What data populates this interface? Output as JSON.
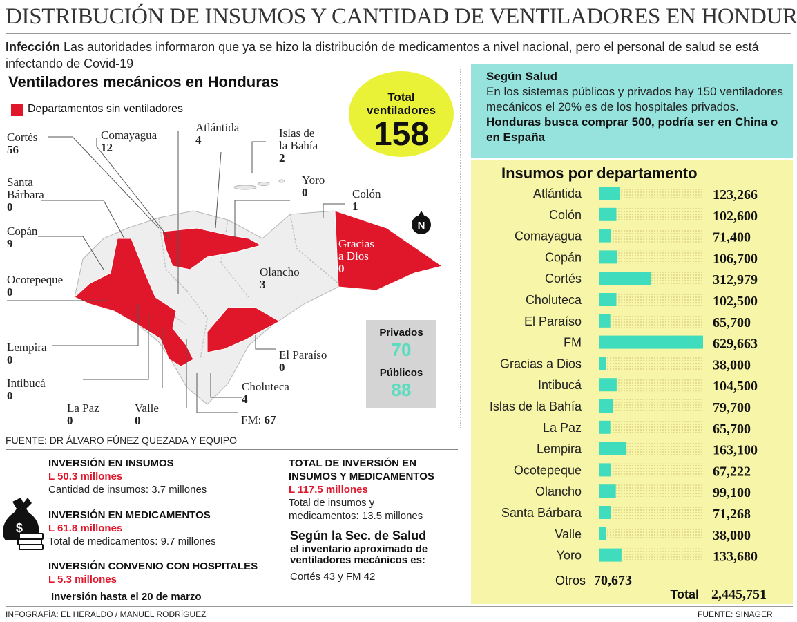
{
  "headline": "DISTRIBUCIÓN DE INSUMOS Y CANTIDAD DE VENTILADORES EN HONDURAS",
  "intro": {
    "lead": "Infección",
    "text": " Las autoridades informaron que ya se hizo la distribución de medicamentos a nivel nacional, pero el personal de salud se está infectando de Covid-19"
  },
  "ventiladores": {
    "title": "Ventiladores mecánicos en Honduras",
    "legend": "Departamentos sin ventiladores",
    "total_label_1": "Total",
    "total_label_2": "ventiladores",
    "total_value": "158",
    "departments": [
      {
        "name": "Cortés",
        "value": "56"
      },
      {
        "name": "Comayagua",
        "value": "12"
      },
      {
        "name": "Atlántida",
        "value": "4"
      },
      {
        "name": "Islas de",
        "name2": "la Bahía",
        "value": "2"
      },
      {
        "name": "Yoro",
        "value": "0"
      },
      {
        "name": "Colón",
        "value": "1"
      },
      {
        "name": "Santa",
        "name2": "Bárbara",
        "value": "0"
      },
      {
        "name": "Copán",
        "value": "9"
      },
      {
        "name": "Gracias",
        "name2": "a Dios",
        "value": "0"
      },
      {
        "name": "Olancho",
        "value": "3"
      },
      {
        "name": "Ocotepeque",
        "value": "0"
      },
      {
        "name": "Lempira",
        "value": "0"
      },
      {
        "name": "El Paraíso",
        "value": "0"
      },
      {
        "name": "Intibucá",
        "value": "0"
      },
      {
        "name": "Choluteca",
        "value": "4"
      },
      {
        "name": "La Paz",
        "value": "0"
      },
      {
        "name": "Valle",
        "value": "0"
      },
      {
        "name": "FM: ",
        "value": "67"
      }
    ],
    "privados_label": "Privados",
    "privados_value": "70",
    "publicos_label": "Públicos",
    "publicos_value": "88",
    "north": "N",
    "fuente": "FUENTE: DR ÁLVARO FÚNEZ QUEZADA Y EQUIPO"
  },
  "inversion": {
    "insumos_title": "INVERSIÓN EN INSUMOS",
    "insumos_amount": "L 50.3 millones",
    "insumos_detail": "Cantidad de insumos: 3.7 millones",
    "medicamentos_title": "INVERSIÓN EN MEDICAMENTOS",
    "medicamentos_amount": "L 61.8 millones",
    "medicamentos_detail": "Total de medicamentos: 9.7 millones",
    "convenio_title": "INVERSIÓN CONVENIO CON HOSPITALES",
    "convenio_amount": "L 5.3 millones",
    "convenio_detail": "Inversión hasta el 20 de marzo",
    "total_title_1": "TOTAL DE INVERSIÓN EN",
    "total_title_2": "INSUMOS Y MEDICAMENTOS",
    "total_amount": "L 117.5 millones",
    "total_detail_1": "Total de insumos y",
    "total_detail_2": "medicamentos: 13.5 millones",
    "sec_title": "Según la Sec. de Salud",
    "sec_sub": "el inventario aproximado de ventiladores mecánicos es:",
    "sec_detail": "Cortés 43 y FM 42"
  },
  "salud": {
    "title": "Según Salud",
    "text": "En los sistemas públicos y privados hay 150 ventiladores mecánicos el 20% es de los hospitales privados. ",
    "bold": "Honduras busca comprar 500, podría ser en China o en España"
  },
  "chart_data": {
    "type": "bar",
    "title": "Insumos por departamento",
    "categories": [
      "Atlántida",
      "Colón",
      "Comayagua",
      "Copán",
      "Cortés",
      "Choluteca",
      "El Paraíso",
      "FM",
      "Gracias a Dios",
      "Intibucá",
      "Islas de la Bahía",
      "La Paz",
      "Lempira",
      "Ocotepeque",
      "Olancho",
      "Santa Bárbara",
      "Valle",
      "Yoro"
    ],
    "values": [
      123266,
      102600,
      71400,
      106700,
      312979,
      102500,
      65700,
      629663,
      38000,
      104500,
      79700,
      65700,
      163100,
      67222,
      99100,
      71268,
      38000,
      133680
    ],
    "value_labels": [
      "123,266",
      "102,600",
      "71,400",
      "106,700",
      "312,979",
      "102,500",
      "65,700",
      "629,663",
      "38,000",
      "104,500",
      "79,700",
      "65,700",
      "163,100",
      "67,222",
      "99,100",
      "71,268",
      "38,000",
      "133,680"
    ],
    "xlim": [
      0,
      629663
    ],
    "otros_label": "Otros",
    "otros_value": "70,673",
    "total_label": "Total",
    "total_value": "2,445,751",
    "bar_color": "#3fdcbd"
  },
  "footer": {
    "left": "INFOGRAFÍA: EL HERALDO / MANUEL RODRÍGUEZ",
    "right": "FUENTE: SINAGER"
  }
}
